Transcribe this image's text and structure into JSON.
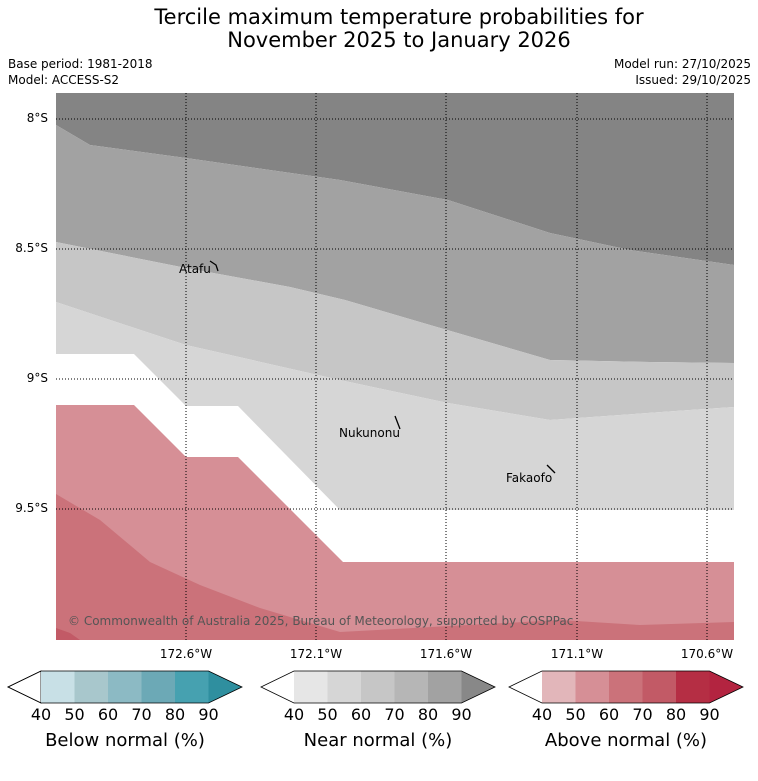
{
  "title": {
    "line1": "Tercile maximum temperature probabilities for",
    "line2": "November 2025 to January 2026"
  },
  "meta": {
    "base_period": "Base period: 1981-2018",
    "model": "Model: ACCESS-S2",
    "model_run": "Model run: 27/10/2025",
    "issued": "Issued: 29/10/2025"
  },
  "map": {
    "lat_labels": [
      "8°S",
      "8.5°S",
      "9°S",
      "9.5°S"
    ],
    "lon_labels": [
      "172.6°W",
      "172.1°W",
      "171.6°W",
      "171.1°W",
      "170.6°W"
    ],
    "places": [
      "Atafu",
      "Nukunonu",
      "Fakaofo"
    ],
    "copyright": "© Commonwealth of Australia 2025, Bureau of Meteorology, supported by COSPPac"
  },
  "legend": {
    "below": {
      "label": "Below normal (%)",
      "ticks": [
        "40",
        "50",
        "60",
        "70",
        "80",
        "90"
      ],
      "colors": [
        "#c8e0e6",
        "#a8c7cc",
        "#8cbac4",
        "#6ca9b6",
        "#46a1b0",
        "#2f8f9f"
      ]
    },
    "near": {
      "label": "Near normal (%)",
      "ticks": [
        "40",
        "50",
        "60",
        "70",
        "80",
        "90"
      ],
      "colors": [
        "#e6e6e6",
        "#d6d6d6",
        "#c6c6c6",
        "#b6b6b6",
        "#a2a2a2",
        "#888888"
      ]
    },
    "above": {
      "label": "Above normal (%)",
      "ticks": [
        "40",
        "50",
        "60",
        "70",
        "80",
        "90"
      ],
      "colors": [
        "#e2b6ba",
        "#d68f96",
        "#cb727a",
        "#c25a66",
        "#b52e44",
        "#b32440"
      ]
    }
  }
}
